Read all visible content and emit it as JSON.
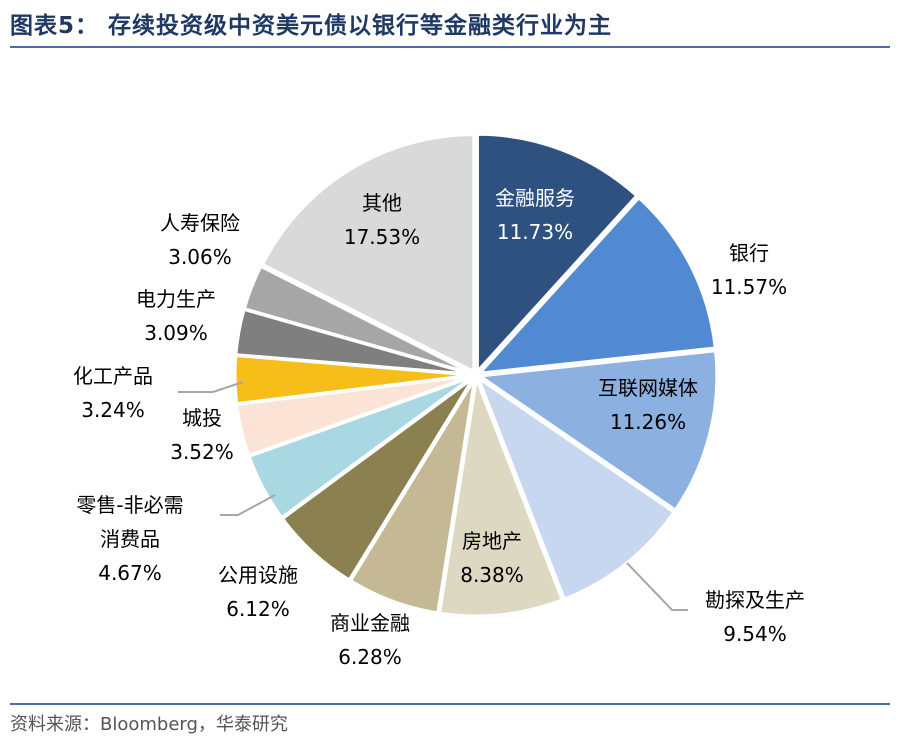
{
  "header": {
    "title": "图表5：  存续投资级中资美元债以银行等金融类行业为主"
  },
  "footer": {
    "source": "资料来源：Bloomberg，华泰研究"
  },
  "chart_data": {
    "type": "pie",
    "title": "",
    "slices": [
      {
        "label": "金融服务",
        "lines": [
          "金融服务"
        ],
        "value": 11.73,
        "display": "11.73%",
        "color": "#2e5180",
        "text_color": "#ffffff"
      },
      {
        "label": "银行",
        "lines": [
          "银行"
        ],
        "value": 11.57,
        "display": "11.57%",
        "color": "#5189d2",
        "text_color": "#000000"
      },
      {
        "label": "互联网媒体",
        "lines": [
          "互联网媒体"
        ],
        "value": 11.26,
        "display": "11.26%",
        "color": "#8cb0e0",
        "text_color": "#000000"
      },
      {
        "label": "勘探及生产",
        "lines": [
          "勘探及生产"
        ],
        "value": 9.54,
        "display": "9.54%",
        "color": "#c6d7ef",
        "text_color": "#000000"
      },
      {
        "label": "房地产",
        "lines": [
          "房地产"
        ],
        "value": 8.38,
        "display": "8.38%",
        "color": "#ddd8c2",
        "text_color": "#000000"
      },
      {
        "label": "商业金融",
        "lines": [
          "商业金融"
        ],
        "value": 6.28,
        "display": "6.28%",
        "color": "#c4b994",
        "text_color": "#000000"
      },
      {
        "label": "公用设施",
        "lines": [
          "公用设施"
        ],
        "value": 6.12,
        "display": "6.12%",
        "color": "#8a8050",
        "text_color": "#000000"
      },
      {
        "label": "零售-非必需消费品",
        "lines": [
          "零售-非必需",
          "消费品"
        ],
        "value": 4.67,
        "display": "4.67%",
        "color": "#a9d8e3",
        "text_color": "#000000"
      },
      {
        "label": "城投",
        "lines": [
          "城投"
        ],
        "value": 3.52,
        "display": "3.52%",
        "color": "#fbe3d6",
        "text_color": "#000000"
      },
      {
        "label": "化工产品",
        "lines": [
          "化工产品"
        ],
        "value": 3.24,
        "display": "3.24%",
        "color": "#f7bd18",
        "text_color": "#000000"
      },
      {
        "label": "电力生产",
        "lines": [
          "电力生产"
        ],
        "value": 3.09,
        "display": "3.09%",
        "color": "#7f7f7f",
        "text_color": "#000000"
      },
      {
        "label": "人寿保险",
        "lines": [
          "人寿保险"
        ],
        "value": 3.06,
        "display": "3.06%",
        "color": "#a6a6a6",
        "text_color": "#000000"
      },
      {
        "label": "其他",
        "lines": [
          "其他"
        ],
        "value": 17.53,
        "display": "17.53%",
        "color": "#d9d9d9",
        "text_color": "#000000"
      }
    ]
  }
}
